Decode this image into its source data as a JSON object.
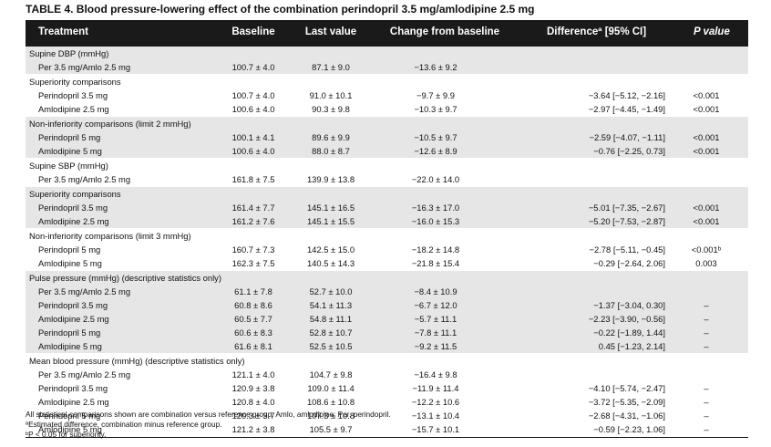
{
  "title": "TABLE 4.  Blood pressure-lowering effect of the combination perindopril 3.5 mg/amlodipine 2.5 mg",
  "columns": {
    "treatment": "Treatment",
    "baseline": "Baseline",
    "last": "Last value",
    "change": "Change from baseline",
    "difference": "Differenceª [95% CI]",
    "p": "P value"
  },
  "sections": [
    {
      "shade": true,
      "heading": "Supine DBP (mmHg)",
      "rows": [
        {
          "label": "Per 3.5 mg/Amlo 2.5 mg",
          "baseline": "100.7 ± 4.0",
          "last": "87.1 ± 9.0",
          "change": "−13.6 ± 9.2",
          "diff": "",
          "p": ""
        }
      ]
    },
    {
      "shade": false,
      "heading": "Superiority comparisons",
      "rows": [
        {
          "label": "Perindopril 3.5 mg",
          "baseline": "100.7 ± 4.0",
          "last": "91.0 ± 10.1",
          "change": "−9.7 ± 9.9",
          "diff": "−3.64 [−5.12, −2.16]",
          "p": "<0.001"
        },
        {
          "label": "Amlodipine 2.5 mg",
          "baseline": "100.6 ± 4.0",
          "last": "90.3 ± 9.8",
          "change": "−10.3 ± 9.7",
          "diff": "−2.97 [−4.45, −1.49]",
          "p": "<0.001"
        }
      ]
    },
    {
      "shade": true,
      "heading": "Non-inferiority comparisons (limit 2 mmHg)",
      "rows": [
        {
          "label": "Perindopril 5 mg",
          "baseline": "100.1 ± 4.1",
          "last": "89.6 ± 9.9",
          "change": "−10.5 ± 9.7",
          "diff": "−2.59 [−4.07, −1.11]",
          "p": "<0.001"
        },
        {
          "label": "Amlodipine 5 mg",
          "baseline": "100.6 ± 4.0",
          "last": "88.0 ± 8.7",
          "change": "−12.6 ± 8.9",
          "diff": "−0.76 [−2.25, 0.73]",
          "p": "<0.001"
        }
      ]
    },
    {
      "shade": false,
      "heading": "Supine SBP (mmHg)",
      "rows": [
        {
          "label": "Per 3.5 mg/Amlo 2.5 mg",
          "baseline": "161.8 ± 7.5",
          "last": "139.9 ± 13.8",
          "change": "−22.0 ± 14.0",
          "diff": "",
          "p": ""
        }
      ]
    },
    {
      "shade": true,
      "heading": "Superiority comparisons",
      "rows": [
        {
          "label": "Perindopril 3.5 mg",
          "baseline": "161.4 ± 7.7",
          "last": "145.1 ± 16.5",
          "change": "−16.3 ± 17.0",
          "diff": "−5.01 [−7.35, −2.67]",
          "p": "<0.001"
        },
        {
          "label": "Amlodipine 2.5 mg",
          "baseline": "161.2 ± 7.6",
          "last": "145.1 ± 15.5",
          "change": "−16.0 ± 15.3",
          "diff": "−5.20 [−7.53, −2.87]",
          "p": "<0.001"
        }
      ]
    },
    {
      "shade": false,
      "heading": "Non-inferiority comparisons (limit 3 mmHg)",
      "rows": [
        {
          "label": "Perindopril 5 mg",
          "baseline": "160.7 ± 7.3",
          "last": "142.5 ± 15.0",
          "change": "−18.2 ± 14.8",
          "diff": "−2.78 [−5.11, −0.45]",
          "p": "<0.001ᵇ"
        },
        {
          "label": "Amlodipine 5 mg",
          "baseline": "162.3 ± 7.5",
          "last": "140.5 ± 14.3",
          "change": "−21.8 ± 15.4",
          "diff": "−0.29 [−2.64, 2.06]",
          "p": "0.003"
        }
      ]
    },
    {
      "shade": true,
      "heading": "Pulse pressure (mmHg) (descriptive statistics only)",
      "rows": [
        {
          "label": "Per 3.5 mg/Amlo 2.5 mg",
          "baseline": "61.1 ± 7.8",
          "last": "52.7 ± 10.0",
          "change": "−8.4 ± 10.9",
          "diff": "",
          "p": ""
        },
        {
          "label": "Perindopril 3.5 mg",
          "baseline": "60.8 ± 8.6",
          "last": "54.1 ± 11.3",
          "change": "−6.7 ± 12.0",
          "diff": "−1.37 [−3.04, 0.30]",
          "p": "–"
        },
        {
          "label": "Amlodipine 2.5 mg",
          "baseline": "60.5 ± 7.7",
          "last": "54.8 ± 11.1",
          "change": "−5.7 ± 11.1",
          "diff": "−2.23 [−3.90, −0.56]",
          "p": "–"
        },
        {
          "label": "Perindopril 5 mg",
          "baseline": "60.6 ± 8.3",
          "last": "52.8 ± 10.7",
          "change": "−7.8 ± 11.1",
          "diff": "−0.22 [−1.89, 1.44]",
          "p": "–"
        },
        {
          "label": "Amlodipine 5 mg",
          "baseline": "61.6 ± 8.1",
          "last": "52.5 ± 10.5",
          "change": "−9.2 ± 11.5",
          "diff": "0.45 [−1.23, 2.14]",
          "p": "–"
        }
      ]
    },
    {
      "shade": false,
      "heading": "Mean blood pressure (mmHg) (descriptive statistics only)",
      "rows": [
        {
          "label": "Per 3.5 mg/Amlo 2.5 mg",
          "baseline": "121.1 ± 4.0",
          "last": "104.7 ± 9.8",
          "change": "−16.4 ± 9.8",
          "diff": "",
          "p": ""
        },
        {
          "label": "Perindopril 3.5 mg",
          "baseline": "120.9 ± 3.8",
          "last": "109.0 ± 11.4",
          "change": "−11.9 ± 11.4",
          "diff": "−4.10 [−5.74, −2.47]",
          "p": "–"
        },
        {
          "label": "Amlodipine 2.5 mg",
          "baseline": "120.8 ± 4.0",
          "last": "108.6 ± 10.8",
          "change": "−12.2 ± 10.6",
          "diff": "−3.72 [−5.35, −2.09]",
          "p": "–"
        },
        {
          "label": "Perindopril 5 mg",
          "baseline": "120.3 ± 3.7",
          "last": "107.3 ± 10.8",
          "change": "−13.1 ± 10.4",
          "diff": "−2.68 [−4.31, −1.06]",
          "p": "–"
        },
        {
          "label": "Amlodipine 5 mg",
          "baseline": "121.2 ± 3.8",
          "last": "105.5 ± 9.7",
          "change": "−15.7 ± 10.1",
          "diff": "−0.59 [−2.23, 1.06]",
          "p": "–"
        }
      ]
    }
  ],
  "footnotes": [
    "All statistical comparisons shown are combination versus reference group. Amlo, amlodipine; Per, perindopril.",
    "ªEstimated difference, combination minus reference group.",
    "ᵇP < 0.05 for superiority."
  ]
}
